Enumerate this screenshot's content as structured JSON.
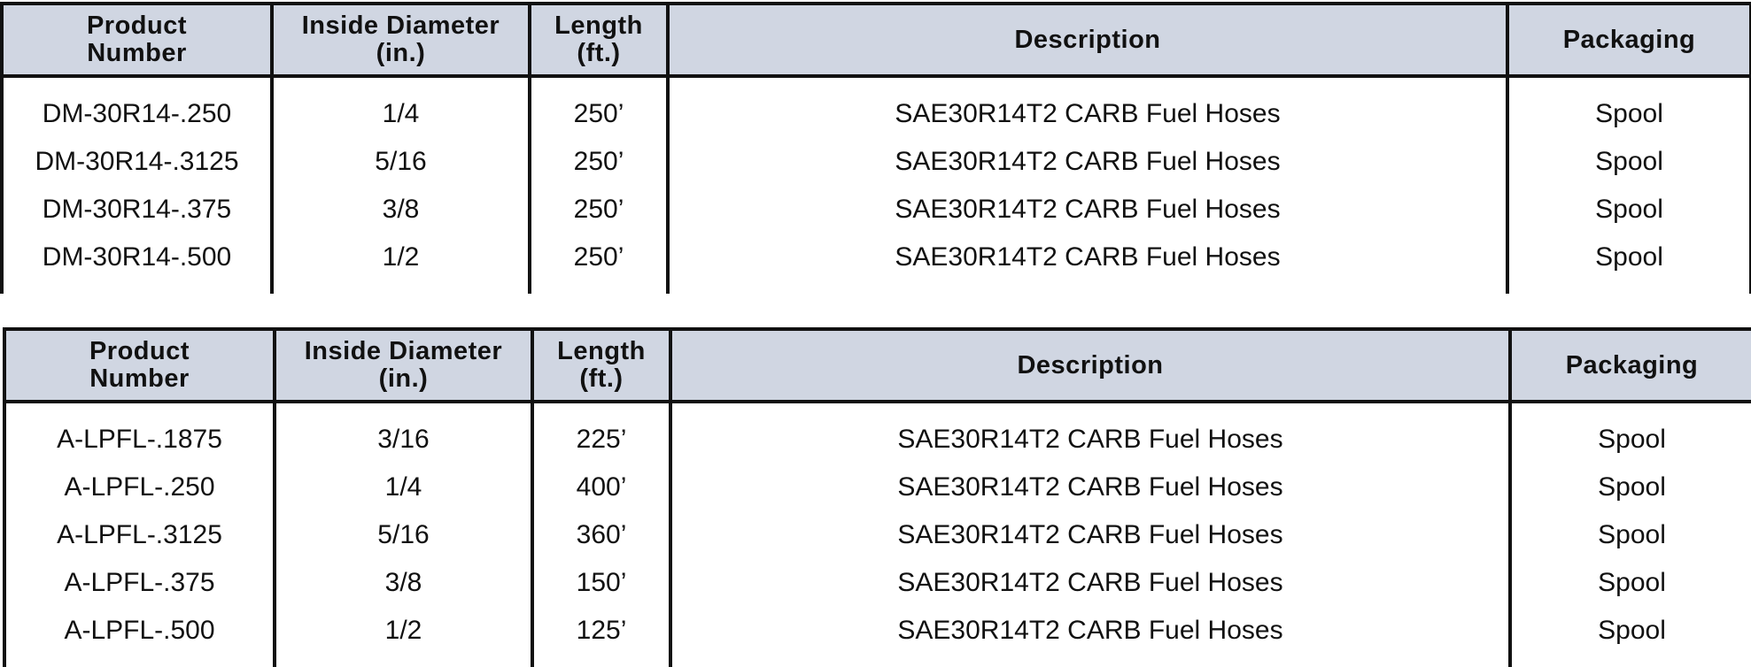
{
  "headers": {
    "product_number": "Product\nNumber",
    "product_line1": "Product",
    "product_line2": "Number",
    "diameter_line1": "Inside Diameter",
    "diameter_line2": "(in.)",
    "length_line1": "Length",
    "length_line2": "(ft.)",
    "description": "Description",
    "packaging": "Packaging"
  },
  "tables": [
    {
      "rows": [
        {
          "product": "DM-30R14-.250",
          "diameter": "1/4",
          "length": "250’",
          "description": "SAE30R14T2 CARB Fuel Hoses",
          "packaging": "Spool"
        },
        {
          "product": "DM-30R14-.3125",
          "diameter": "5/16",
          "length": "250’",
          "description": "SAE30R14T2 CARB Fuel Hoses",
          "packaging": "Spool"
        },
        {
          "product": "DM-30R14-.375",
          "diameter": "3/8",
          "length": "250’",
          "description": "SAE30R14T2 CARB Fuel Hoses",
          "packaging": "Spool"
        },
        {
          "product": "DM-30R14-.500",
          "diameter": "1/2",
          "length": "250’",
          "description": "SAE30R14T2 CARB Fuel Hoses",
          "packaging": "Spool"
        }
      ]
    },
    {
      "rows": [
        {
          "product": "A-LPFL-.1875",
          "diameter": "3/16",
          "length": "225’",
          "description": "SAE30R14T2 CARB Fuel Hoses",
          "packaging": "Spool"
        },
        {
          "product": "A-LPFL-.250",
          "diameter": "1/4",
          "length": "400’",
          "description": "SAE30R14T2 CARB Fuel Hoses",
          "packaging": "Spool"
        },
        {
          "product": "A-LPFL-.3125",
          "diameter": "5/16",
          "length": "360’",
          "description": "SAE30R14T2 CARB Fuel Hoses",
          "packaging": "Spool"
        },
        {
          "product": "A-LPFL-.375",
          "diameter": "3/8",
          "length": "150’",
          "description": "SAE30R14T2 CARB Fuel Hoses",
          "packaging": "Spool"
        },
        {
          "product": "A-LPFL-.500",
          "diameter": "1/2",
          "length": "125’",
          "description": "SAE30R14T2 CARB Fuel Hoses",
          "packaging": "Spool"
        }
      ]
    }
  ],
  "colors": {
    "header_bg": "#d0d6e2",
    "border": "#111111"
  }
}
